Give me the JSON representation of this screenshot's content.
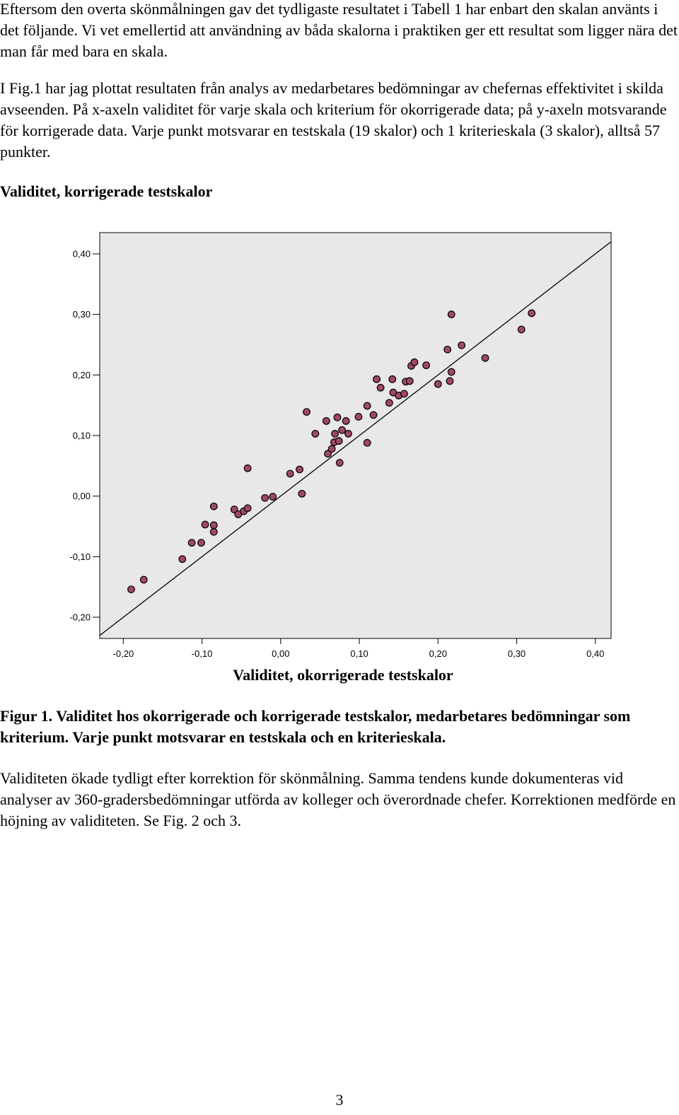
{
  "paragraphs": {
    "intro": "Eftersom den overta skönmålningen gav det tydligaste resultatet i Tabell 1 har enbart den skalan använts i det följande. Vi vet emellertid att användning av båda skalorna i praktiken ger ett resultat som ligger nära det man får med bara en skala.",
    "figure_ref": "I Fig.1 har jag plottat resultaten från analys av medarbetares bedömningar av chefernas effektivitet i skilda avseenden. På x-axeln validitet för varje skala och kriterium för okorrigerade data; på y-axeln motsvarande för korrigerade data. Varje punkt motsvarar en testskala (19 skalor) och 1 kriterieskala (3 skalor), alltså 57 punkter.",
    "conclusion": "Validiteten ökade tydligt efter korrektion för skönmålning. Samma tendens kunde dokumenteras vid analyser av 360-gradersbedömningar utförda av kolleger och överordnade chefer. Korrektionen medförde en höjning av validiteten. Se Fig. 2 och 3."
  },
  "figure_caption": "Figur 1. Validitet hos okorrigerade och korrigerade testskalor, medarbetares bedömningar som kriterium. Varje punkt motsvarar en testskala och en kriterieskala.",
  "page_number": "3",
  "chart_data": {
    "type": "scatter",
    "xlabel": "Validitet, okorrigerade testskalor",
    "ylabel": "Validitet, korrigerade testskalor",
    "xlim": [
      -0.23,
      0.42
    ],
    "ylim": [
      -0.235,
      0.435
    ],
    "x_ticks": [
      -0.2,
      -0.1,
      0.0,
      0.1,
      0.2,
      0.3,
      0.4
    ],
    "y_ticks": [
      -0.2,
      -0.1,
      0.0,
      0.1,
      0.2,
      0.3,
      0.4
    ],
    "x_tick_labels": [
      "-0,20",
      "-0,10",
      "0,00",
      "0,10",
      "0,20",
      "0,30",
      "0,40"
    ],
    "y_tick_labels": [
      "-0,20",
      "-0,10",
      "0,00",
      "0,10",
      "0,20",
      "0,30",
      "0,40"
    ],
    "reference_line": "y = x",
    "grid": false,
    "background_color": "#e8e8e8",
    "point_color": "#a04868",
    "points": [
      [
        -0.19,
        -0.154
      ],
      [
        -0.174,
        -0.138
      ],
      [
        -0.125,
        -0.104
      ],
      [
        -0.113,
        -0.077
      ],
      [
        -0.101,
        -0.077
      ],
      [
        -0.096,
        -0.047
      ],
      [
        -0.085,
        -0.048
      ],
      [
        -0.085,
        -0.059
      ],
      [
        -0.085,
        -0.017
      ],
      [
        -0.059,
        -0.022
      ],
      [
        -0.054,
        -0.03
      ],
      [
        -0.047,
        -0.025
      ],
      [
        -0.042,
        -0.02
      ],
      [
        -0.042,
        0.046
      ],
      [
        -0.02,
        -0.003
      ],
      [
        -0.01,
        -0.001
      ],
      [
        0.012,
        0.037
      ],
      [
        0.024,
        0.044
      ],
      [
        0.027,
        0.004
      ],
      [
        0.033,
        0.139
      ],
      [
        0.044,
        0.103
      ],
      [
        0.058,
        0.124
      ],
      [
        0.06,
        0.07
      ],
      [
        0.065,
        0.078
      ],
      [
        0.068,
        0.089
      ],
      [
        0.069,
        0.103
      ],
      [
        0.072,
        0.13
      ],
      [
        0.074,
        0.091
      ],
      [
        0.075,
        0.055
      ],
      [
        0.078,
        0.109
      ],
      [
        0.083,
        0.124
      ],
      [
        0.086,
        0.103
      ],
      [
        0.099,
        0.131
      ],
      [
        0.11,
        0.149
      ],
      [
        0.11,
        0.088
      ],
      [
        0.118,
        0.134
      ],
      [
        0.122,
        0.193
      ],
      [
        0.127,
        0.179
      ],
      [
        0.138,
        0.154
      ],
      [
        0.142,
        0.193
      ],
      [
        0.143,
        0.171
      ],
      [
        0.15,
        0.166
      ],
      [
        0.157,
        0.169
      ],
      [
        0.159,
        0.189
      ],
      [
        0.164,
        0.19
      ],
      [
        0.166,
        0.215
      ],
      [
        0.17,
        0.221
      ],
      [
        0.185,
        0.216
      ],
      [
        0.2,
        0.185
      ],
      [
        0.212,
        0.242
      ],
      [
        0.215,
        0.19
      ],
      [
        0.217,
        0.205
      ],
      [
        0.217,
        0.3
      ],
      [
        0.23,
        0.249
      ],
      [
        0.26,
        0.228
      ],
      [
        0.306,
        0.275
      ],
      [
        0.319,
        0.302
      ]
    ]
  }
}
